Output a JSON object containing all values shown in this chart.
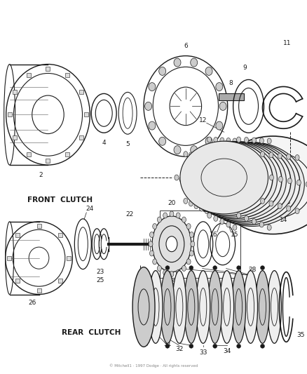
{
  "background_color": "#ffffff",
  "line_color": "#1a1a1a",
  "text_color": "#1a1a1a",
  "font_size_labels": 6.5,
  "font_size_section": 7.5,
  "front_clutch_label": "FRONT  CLUTCH",
  "rear_clutch_label": "REAR  CLUTCH",
  "figsize": [
    4.39,
    5.33
  ],
  "dpi": 100
}
